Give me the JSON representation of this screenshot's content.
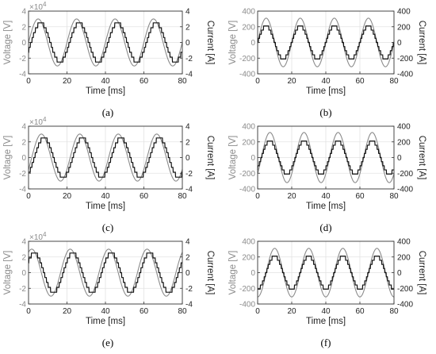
{
  "chart_data": [
    {
      "type": "line",
      "caption": "(a)",
      "xlabel": "Time [ms]",
      "ylabel_left": "Voltage [V]",
      "ylabel_right": "Current [A]",
      "xlim": [
        0,
        80
      ],
      "ylim_left": [
        -40000,
        40000
      ],
      "ylim_right": [
        -4,
        4
      ],
      "xticks": [
        0,
        20,
        40,
        60,
        80
      ],
      "yticks_left": [
        -4,
        -2,
        0,
        2,
        4
      ],
      "yticks_right": [
        -4,
        -2,
        0,
        2,
        4
      ],
      "left_exponent": "×10",
      "left_exponent_power": "4",
      "grid": true,
      "series": [
        {
          "axis": "left",
          "color": "#8a8a8a",
          "style": "sine",
          "amplitude": 30000,
          "frequency_hz": 50,
          "phase_deg": 0
        },
        {
          "axis": "right",
          "color": "#111111",
          "style": "stepped",
          "amplitude": 2.5,
          "frequency_hz": 50,
          "phase_deg": -25
        }
      ]
    },
    {
      "type": "line",
      "caption": "(b)",
      "xlabel": "Time [ms]",
      "ylabel_left": "Voltage [V]",
      "ylabel_right": "Current [A]",
      "xlim": [
        0,
        80
      ],
      "ylim_left": [
        -400,
        400
      ],
      "ylim_right": [
        -400,
        400
      ],
      "xticks": [
        0,
        20,
        40,
        60,
        80
      ],
      "yticks_left": [
        -400,
        -200,
        0,
        200,
        400
      ],
      "yticks_right": [
        -400,
        -200,
        0,
        200,
        400
      ],
      "grid": true,
      "series": [
        {
          "axis": "left",
          "color": "#8a8a8a",
          "style": "sine",
          "amplitude": 310,
          "frequency_hz": 50,
          "phase_deg": 0
        },
        {
          "axis": "right",
          "color": "#111111",
          "style": "stepped",
          "amplitude": 210,
          "frequency_hz": 50,
          "phase_deg": 0
        }
      ]
    },
    {
      "type": "line",
      "caption": "(c)",
      "xlabel": "Time [ms]",
      "ylabel_left": "Voltage [V]",
      "ylabel_right": "Current [A]",
      "xlim": [
        0,
        80
      ],
      "ylim_left": [
        -40000,
        40000
      ],
      "ylim_right": [
        -4,
        4
      ],
      "xticks": [
        0,
        20,
        40,
        60,
        80
      ],
      "yticks_left": [
        -4,
        -2,
        0,
        2,
        4
      ],
      "yticks_right": [
        -4,
        -2,
        0,
        2,
        4
      ],
      "left_exponent": "×10",
      "left_exponent_power": "4",
      "grid": true,
      "series": [
        {
          "axis": "left",
          "color": "#8a8a8a",
          "style": "sine",
          "amplitude": 30000,
          "frequency_hz": 50,
          "phase_deg": -30
        },
        {
          "axis": "right",
          "color": "#111111",
          "style": "stepped",
          "amplitude": 2.5,
          "frequency_hz": 50,
          "phase_deg": -55
        }
      ]
    },
    {
      "type": "line",
      "caption": "(d)",
      "xlabel": "Time [ms]",
      "ylabel_left": "Voltage [V]",
      "ylabel_right": "Current [A]",
      "xlim": [
        0,
        80
      ],
      "ylim_left": [
        -400,
        400
      ],
      "ylim_right": [
        -400,
        400
      ],
      "xticks": [
        0,
        20,
        40,
        60,
        80
      ],
      "yticks_left": [
        -400,
        -200,
        0,
        200,
        400
      ],
      "yticks_right": [
        -400,
        -200,
        0,
        200,
        400
      ],
      "grid": true,
      "series": [
        {
          "axis": "left",
          "color": "#8a8a8a",
          "style": "sine",
          "amplitude": 320,
          "frequency_hz": 50,
          "phase_deg": -40
        },
        {
          "axis": "right",
          "color": "#111111",
          "style": "stepped",
          "amplitude": 210,
          "frequency_hz": 50,
          "phase_deg": -40
        }
      ]
    },
    {
      "type": "line",
      "caption": "(e)",
      "xlabel": "Time [ms]",
      "ylabel_left": "Voltage [V]",
      "ylabel_right": "Current [A]",
      "xlim": [
        0,
        80
      ],
      "ylim_left": [
        -40000,
        40000
      ],
      "ylim_right": [
        -4,
        4
      ],
      "xticks": [
        0,
        20,
        40,
        60,
        80
      ],
      "yticks_left": [
        -4,
        -2,
        0,
        2,
        4
      ],
      "yticks_right": [
        -4,
        -2,
        0,
        2,
        4
      ],
      "left_exponent": "×10",
      "left_exponent_power": "4",
      "grid": true,
      "series": [
        {
          "axis": "left",
          "color": "#8a8a8a",
          "style": "sine",
          "amplitude": 30000,
          "frequency_hz": 50,
          "phase_deg": 60
        },
        {
          "axis": "right",
          "color": "#111111",
          "style": "stepped",
          "amplitude": 2.5,
          "frequency_hz": 50,
          "phase_deg": 35
        }
      ]
    },
    {
      "type": "line",
      "caption": "(f)",
      "xlabel": "Time [ms]",
      "ylabel_left": "Voltage [V]",
      "ylabel_right": "Current [A]",
      "xlim": [
        0,
        80
      ],
      "ylim_left": [
        -400,
        400
      ],
      "ylim_right": [
        -400,
        400
      ],
      "xticks": [
        0,
        20,
        40,
        60,
        80
      ],
      "yticks_left": [
        -400,
        -200,
        0,
        200,
        400
      ],
      "yticks_right": [
        -400,
        -200,
        0,
        200,
        400
      ],
      "grid": true,
      "series": [
        {
          "axis": "left",
          "color": "#8a8a8a",
          "style": "sine",
          "amplitude": 310,
          "frequency_hz": 50,
          "phase_deg": -90
        },
        {
          "axis": "right",
          "color": "#111111",
          "style": "stepped",
          "amplitude": 210,
          "frequency_hz": 50,
          "phase_deg": -90
        }
      ]
    }
  ]
}
